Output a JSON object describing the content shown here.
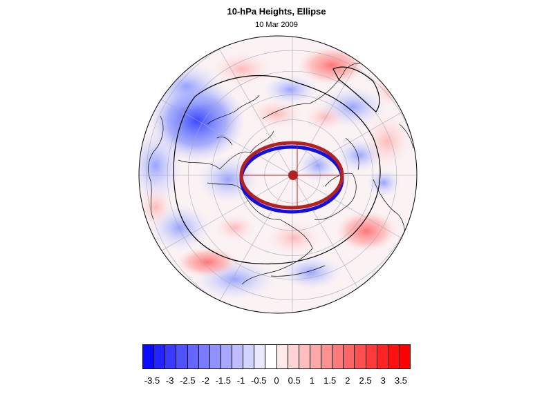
{
  "title": "10-hPa Heights, Ellipse",
  "subtitle": "10 Mar 2009",
  "colorbar": {
    "labels": [
      "-3.5",
      "-3",
      "-2.5",
      "-2",
      "-1.5",
      "-1",
      "-0.5",
      "0",
      "0.5",
      "1",
      "1.5",
      "2",
      "2.5",
      "3",
      "3.5"
    ],
    "colors": [
      "#0a0aff",
      "#2323ff",
      "#3a3aff",
      "#5050ff",
      "#6565ff",
      "#7b7bff",
      "#9191ff",
      "#a8a8ff",
      "#bdbdff",
      "#d3d3ff",
      "#e9e9ff",
      "#ffffff",
      "#ffe9e9",
      "#ffd3d3",
      "#ffbdbd",
      "#ffa8a8",
      "#ff9191",
      "#ff7b7b",
      "#ff6565",
      "#ff5050",
      "#ff3a3a",
      "#ff2323",
      "#ff1010",
      "#ff0000"
    ]
  },
  "map": {
    "projection": "orthographic-polar",
    "ocean_color": "#ffffff",
    "ellipse_color": "#b22222",
    "ellipse_shadow_color": "#1010e0"
  }
}
